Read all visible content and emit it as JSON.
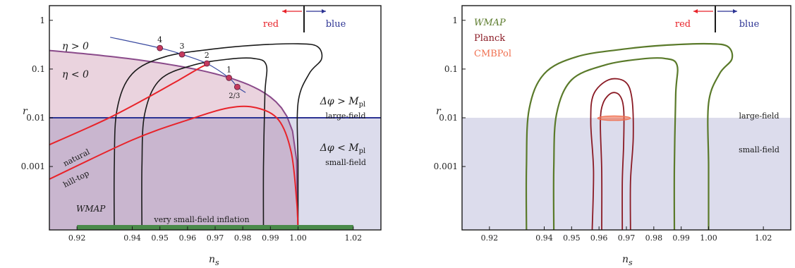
{
  "chart_data": [
    {
      "type": "line",
      "panel": "left",
      "xlabel": "n_s",
      "ylabel": "r",
      "xlim": [
        0.91,
        1.03
      ],
      "ylim": [
        5e-05,
        2.0
      ],
      "yscale": "log",
      "x_ticks": [
        "0.92",
        "0.94",
        "0.95",
        "0.96",
        "0.97",
        "0.98",
        "0.99",
        "1.00",
        "1.02"
      ],
      "x_tick_values": [
        0.92,
        0.94,
        0.95,
        0.96,
        0.97,
        0.98,
        0.99,
        1.0,
        1.02
      ],
      "y_ticks": [
        "1",
        "0.1",
        "0.01",
        "0.001"
      ],
      "y_tick_values": [
        1,
        0.1,
        0.01,
        0.001
      ],
      "grid": false,
      "direction_labels": {
        "red": "red",
        "blue": "blue"
      },
      "regions": [
        {
          "label_top": "η > 0",
          "label_bottom": "η < 0",
          "boundary": "r = 8(1−n_s)/3"
        },
        {
          "label_top": "Δφ > M",
          "sub": "pl",
          "desc": "large-field"
        },
        {
          "label_bottom": "Δφ < M",
          "sub": "pl",
          "desc": "small-field"
        }
      ],
      "boundary_r": 0.01,
      "legend_label": "WMAP",
      "bottom_bar_label": "very small-field inflation",
      "bottom_bar_range": [
        0.92,
        1.02
      ],
      "model_labels": [
        "natural",
        "hill-top"
      ],
      "attractor_points": [
        {
          "label": "4",
          "x": 0.95,
          "y": 0.27
        },
        {
          "label": "3",
          "x": 0.958,
          "y": 0.2
        },
        {
          "label": "2",
          "x": 0.967,
          "y": 0.13
        },
        {
          "label": "1",
          "x": 0.975,
          "y": 0.066
        },
        {
          "label": "2/3",
          "x": 0.978,
          "y": 0.043
        }
      ],
      "colors": {
        "red": "#e8232a",
        "blue": "#2c3393",
        "contour": "#1a1a1a",
        "dot": "#c43a5e",
        "large_region": "#ead3de",
        "small_region": "#dcdcec",
        "overlap": "#c9b6cf",
        "bar": "#4a8a4a"
      }
    },
    {
      "type": "line",
      "panel": "right",
      "xlabel": "n_s",
      "ylabel": "r",
      "xlim": [
        0.91,
        1.03
      ],
      "ylim": [
        5e-05,
        2.0
      ],
      "yscale": "log",
      "x_ticks": [
        "0.92",
        "0.94",
        "0.95",
        "0.96",
        "0.97",
        "0.98",
        "0.99",
        "1.00",
        "1.02"
      ],
      "x_tick_values": [
        0.92,
        0.94,
        0.95,
        0.96,
        0.97,
        0.98,
        0.99,
        1.0,
        1.02
      ],
      "y_ticks": [
        "1",
        "0.1",
        "0.01",
        "0.001"
      ],
      "y_tick_values": [
        1,
        0.1,
        0.01,
        0.001
      ],
      "grid": false,
      "direction_labels": {
        "red": "red",
        "blue": "blue"
      },
      "legend": [
        {
          "name": "WMAP",
          "color": "#5a7a2a"
        },
        {
          "name": "Planck",
          "color": "#8a1a24"
        },
        {
          "name": "CMBPol",
          "color": "#f07050"
        }
      ],
      "region_labels": [
        "large-field",
        "small-field"
      ],
      "boundary_r": 0.01,
      "colors": {
        "wmap": "#5a7a2a",
        "planck": "#8a1a24",
        "cmbpol": "#f07050",
        "small_region": "#dcdcec"
      }
    }
  ]
}
